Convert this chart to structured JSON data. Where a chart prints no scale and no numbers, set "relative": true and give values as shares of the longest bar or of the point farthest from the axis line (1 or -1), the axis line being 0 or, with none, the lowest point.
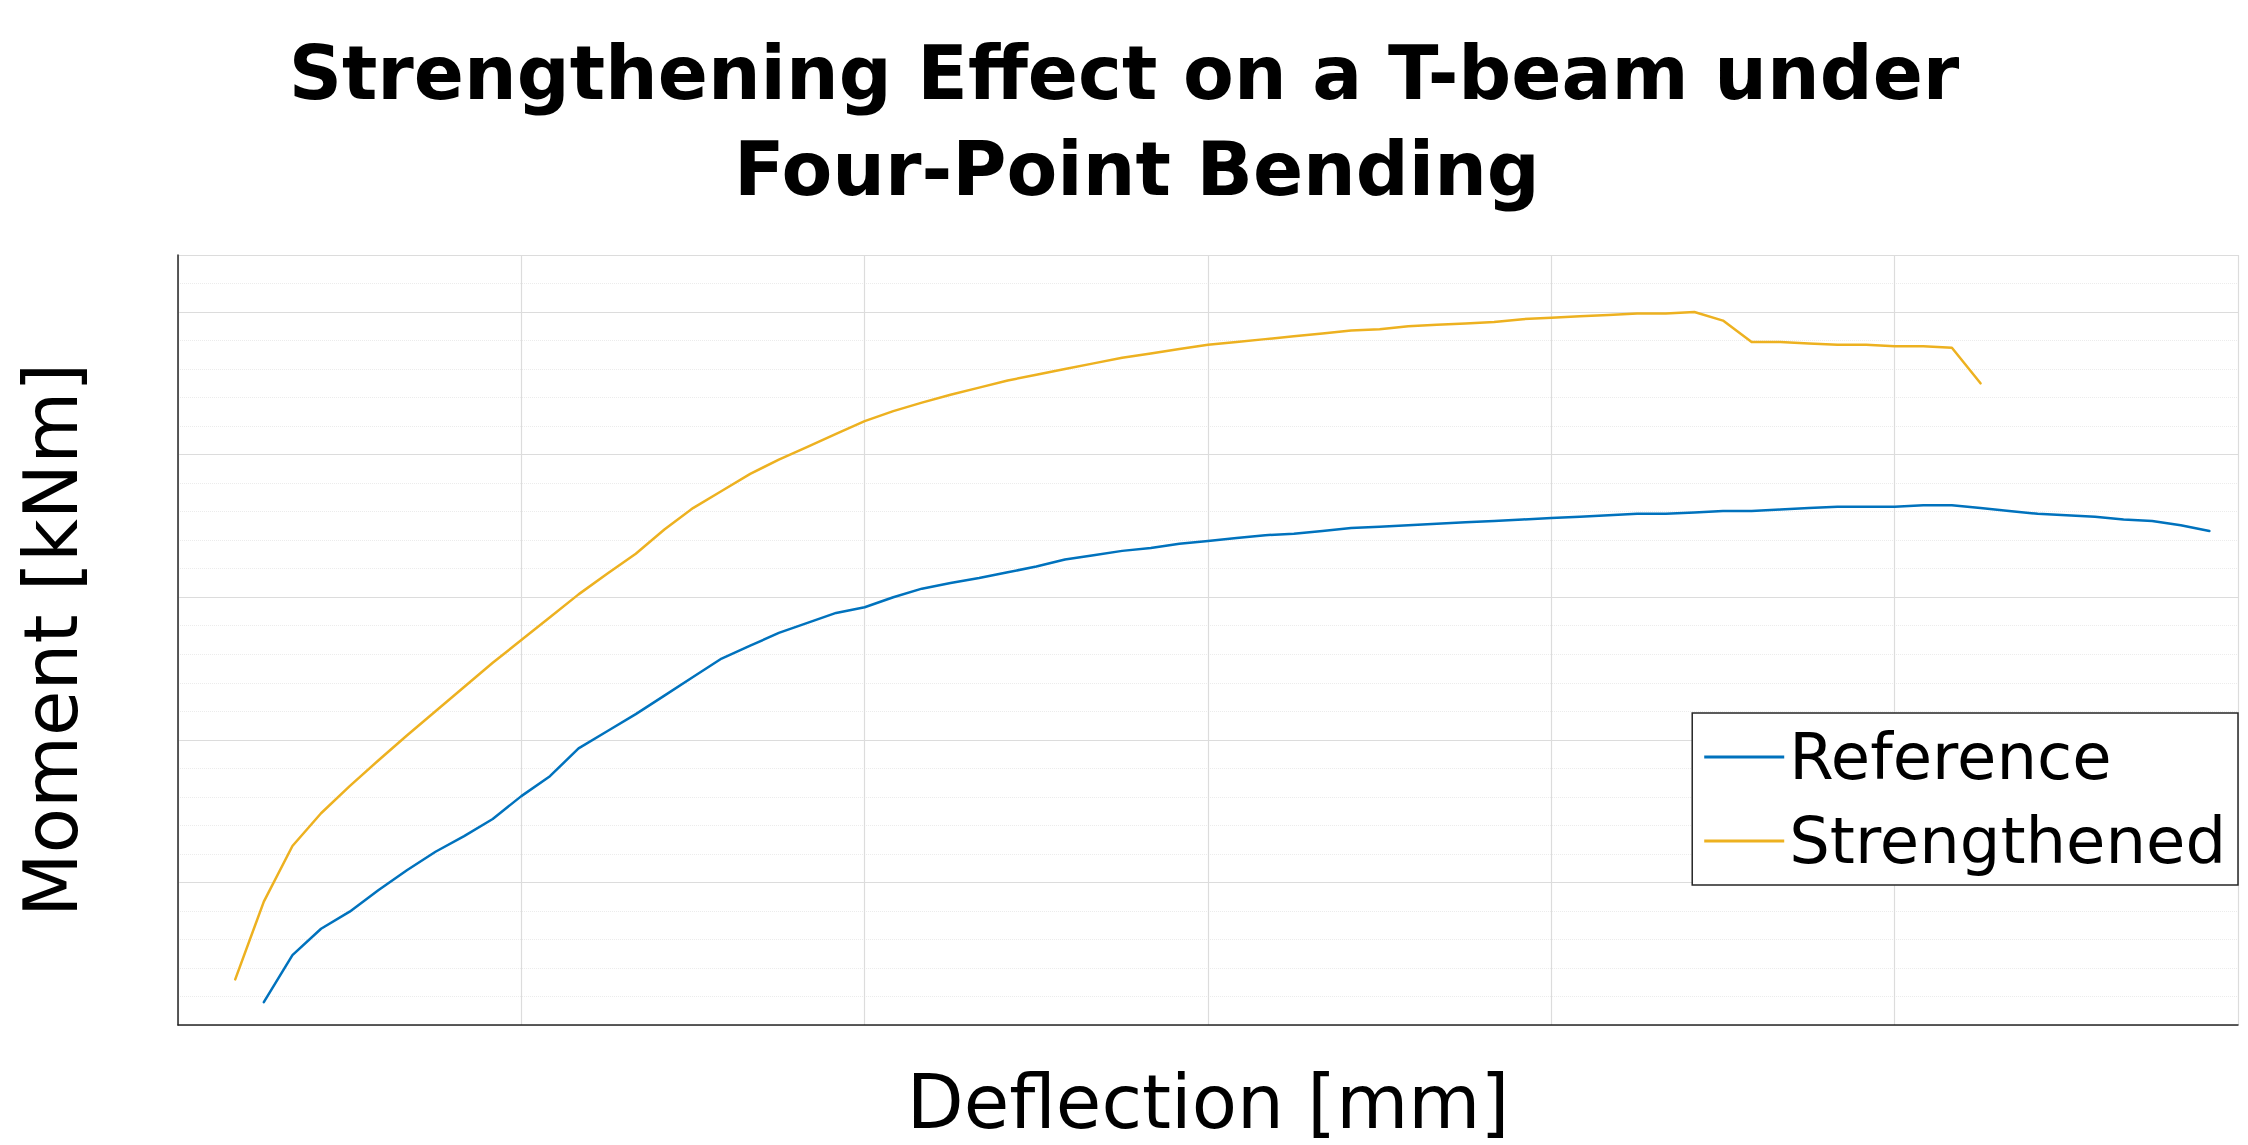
{
  "chart_data": {
    "type": "line",
    "title": "Strengthening Effect on a T-beam under Four-Point Bending",
    "xlabel": "Deflection [mm]",
    "ylabel": "Moment [kNm]",
    "relative": true,
    "grid": true,
    "legend": "bottom right",
    "marker": "none",
    "line_style": "solid",
    "categories": [
      null,
      null,
      null,
      null,
      null,
      null,
      null,
      null,
      null,
      null,
      null,
      null,
      null,
      null,
      null,
      null,
      null,
      null,
      null,
      null,
      null,
      null,
      null,
      null,
      null,
      null,
      null,
      null,
      null,
      null,
      null,
      null,
      null,
      null,
      null,
      null,
      null,
      null,
      null,
      null,
      null,
      null,
      null,
      null,
      null,
      null,
      null,
      null,
      null,
      null,
      null,
      null,
      null,
      null,
      null,
      null,
      null,
      null,
      null,
      null,
      null,
      null,
      null,
      null,
      null,
      null,
      null,
      null,
      null,
      null,
      null,
      null,
      null
    ],
    "series": [
      {
        "name": "Reference",
        "color": "#0072bd",
        "values": [
          null,
          null,
          null,
          0.032,
          0.098,
          0.135,
          0.159,
          0.189,
          0.217,
          0.243,
          0.265,
          0.289,
          0.321,
          0.349,
          0.388,
          0.412,
          0.436,
          0.462,
          0.488,
          0.514,
          0.532,
          0.55,
          0.564,
          0.578,
          0.586,
          0.6,
          0.612,
          0.62,
          0.627,
          0.635,
          0.643,
          0.653,
          0.659,
          0.665,
          0.669,
          0.675,
          0.679,
          0.683,
          0.687,
          0.689,
          0.693,
          0.697,
          0.699,
          0.701,
          0.703,
          0.705,
          0.707,
          0.709,
          0.711,
          0.713,
          0.715,
          0.717,
          0.717,
          0.719,
          0.721,
          0.721,
          0.723,
          0.725,
          0.727,
          0.727,
          0.727,
          0.729,
          0.729,
          0.725,
          0.721,
          0.717,
          0.715,
          0.713,
          0.709,
          0.707,
          0.701,
          0.693,
          null
        ]
      },
      {
        "name": "Strengthened",
        "color": "#edb120",
        "values": [
          null,
          null,
          0.064,
          0.173,
          0.251,
          0.297,
          0.335,
          0.371,
          0.406,
          0.44,
          0.474,
          0.508,
          0.54,
          0.572,
          0.604,
          0.633,
          0.661,
          0.695,
          0.725,
          0.749,
          0.773,
          0.793,
          0.811,
          0.829,
          0.847,
          0.861,
          0.873,
          0.884,
          0.894,
          0.904,
          0.912,
          0.92,
          0.928,
          0.936,
          0.942,
          0.948,
          0.954,
          0.958,
          0.962,
          0.966,
          0.97,
          0.974,
          0.976,
          0.98,
          0.982,
          0.984,
          0.986,
          0.99,
          0.992,
          0.994,
          0.996,
          0.998,
          0.998,
          1,
          0.988,
          0.958,
          0.958,
          0.956,
          0.954,
          0.954,
          0.952,
          0.952,
          0.95,
          0.9,
          null,
          null,
          null,
          null,
          null,
          null,
          null,
          null,
          null
        ]
      }
    ]
  }
}
